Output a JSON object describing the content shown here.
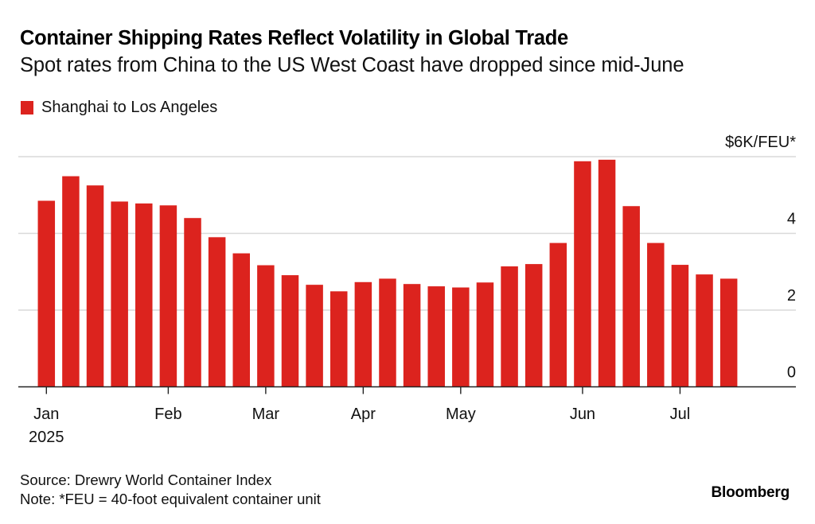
{
  "header": {
    "title": "Container Shipping Rates Reflect Volatility in Global Trade",
    "subtitle": "Spot rates from China to the US West Coast have dropped since mid-June"
  },
  "footer": {
    "source": "Source: Drewry World Container Index",
    "note": "Note: *FEU = 40-foot equivalent container unit",
    "brand": "Bloomberg"
  },
  "colors": {
    "bar": "#dc231e",
    "grid": "#d9d9d9",
    "axis": "#222222",
    "text": "#111111"
  },
  "chart_data": {
    "type": "bar",
    "title": "Container Shipping Rates Reflect Volatility in Global Trade",
    "subtitle": "Spot rates from China to the US West Coast have dropped since mid-June",
    "xlabel": "",
    "ylabel": "$K/FEU",
    "y_unit_label": "$6K/FEU*",
    "ylim": [
      0,
      6
    ],
    "yticks": [
      0,
      2,
      4,
      6
    ],
    "ytick_labels": [
      "0",
      "2",
      "4",
      "$6K/FEU*"
    ],
    "y_axis_side": "right",
    "grid": true,
    "legend": {
      "position": "top-left",
      "entries": [
        "Shanghai to Los Angeles"
      ]
    },
    "xtick_labels": [
      {
        "index": 0,
        "label": "Jan",
        "sublabel": "2025"
      },
      {
        "index": 5,
        "label": "Feb"
      },
      {
        "index": 9,
        "label": "Mar"
      },
      {
        "index": 13,
        "label": "Apr"
      },
      {
        "index": 17,
        "label": "May"
      },
      {
        "index": 22,
        "label": "Jun"
      },
      {
        "index": 26,
        "label": "Jul"
      }
    ],
    "series": [
      {
        "name": "Shanghai to Los Angeles",
        "values": [
          4.85,
          5.49,
          5.25,
          4.83,
          4.78,
          4.73,
          4.4,
          3.9,
          3.48,
          3.17,
          2.91,
          2.66,
          2.49,
          2.73,
          2.82,
          2.68,
          2.62,
          2.59,
          2.72,
          3.14,
          3.2,
          3.75,
          5.88,
          5.92,
          4.71,
          3.75,
          3.18,
          2.93,
          2.82
        ]
      }
    ]
  }
}
